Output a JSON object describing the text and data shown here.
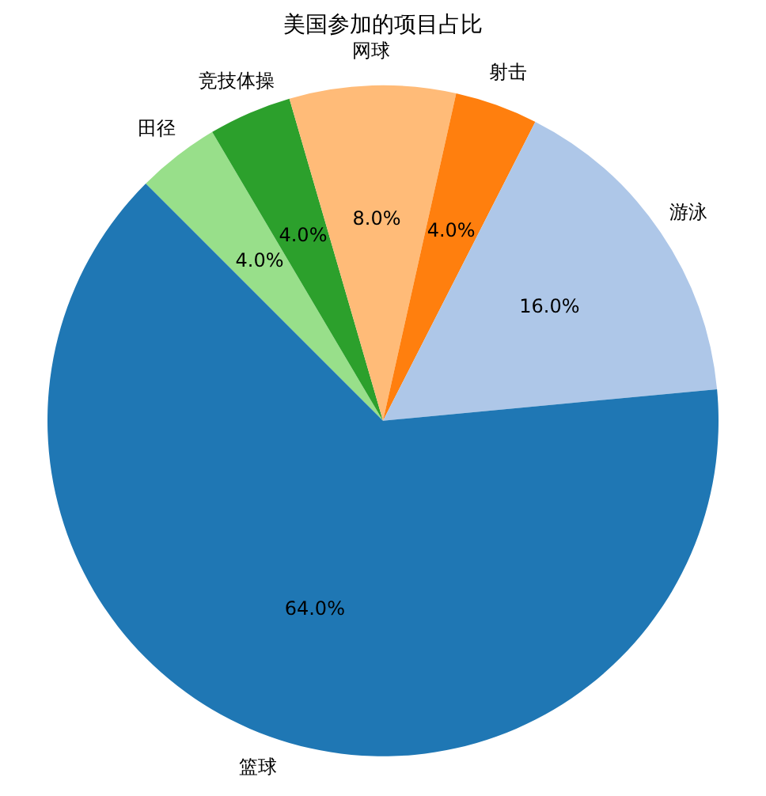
{
  "chart_data": {
    "type": "pie",
    "title": "美国参加的项目占比",
    "categories": [
      "田径",
      "竞技体操",
      "网球",
      "射击",
      "游泳",
      "篮球"
    ],
    "values": [
      4,
      4,
      8,
      4,
      16,
      64
    ],
    "colors": [
      "#98df8a",
      "#2ca02c",
      "#ffbb78",
      "#ff7f0e",
      "#aec7e8",
      "#1f77b4"
    ],
    "value_labels": [
      "4.0%",
      "4.0%",
      "8.0%",
      "4.0%",
      "16.0%",
      "64.0%"
    ],
    "legend": false
  }
}
